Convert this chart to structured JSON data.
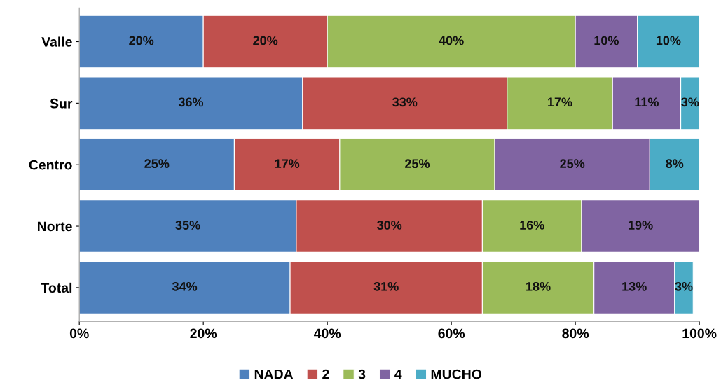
{
  "chart_data": {
    "type": "bar",
    "orientation": "horizontal",
    "stacked": true,
    "categories": [
      "Valle",
      "Sur",
      "Centro",
      "Norte",
      "Total"
    ],
    "series": [
      {
        "name": "NADA",
        "color": "#4f81bd",
        "values": [
          20,
          36,
          25,
          35,
          34
        ],
        "value_labels": [
          "20%",
          "36%",
          "25%",
          "35%",
          "34%"
        ]
      },
      {
        "name": "2",
        "color": "#c0504d",
        "values": [
          20,
          33,
          17,
          30,
          31
        ],
        "value_labels": [
          "20%",
          "33%",
          "17%",
          "30%",
          "31%"
        ]
      },
      {
        "name": "3",
        "color": "#9bbb59",
        "values": [
          40,
          17,
          25,
          16,
          18
        ],
        "value_labels": [
          "40%",
          "17%",
          "25%",
          "16%",
          "18%"
        ]
      },
      {
        "name": "4",
        "color": "#8064a2",
        "values": [
          10,
          11,
          25,
          19,
          13
        ],
        "value_labels": [
          "10%",
          "11%",
          "25%",
          "19%",
          "13%"
        ]
      },
      {
        "name": "MUCHO",
        "color": "#4bacc6",
        "values": [
          10,
          3,
          8,
          0,
          3
        ],
        "value_labels": [
          "10%",
          "3%",
          "8%",
          null,
          "3%"
        ]
      }
    ],
    "xlim": [
      0,
      100
    ],
    "xticks": [
      {
        "value": 0,
        "label": "0%"
      },
      {
        "value": 20,
        "label": "20%"
      },
      {
        "value": 40,
        "label": "40%"
      },
      {
        "value": 60,
        "label": "60%"
      },
      {
        "value": 80,
        "label": "80%"
      },
      {
        "value": 100,
        "label": "100%"
      }
    ],
    "grid": false,
    "legend": "bottom"
  }
}
